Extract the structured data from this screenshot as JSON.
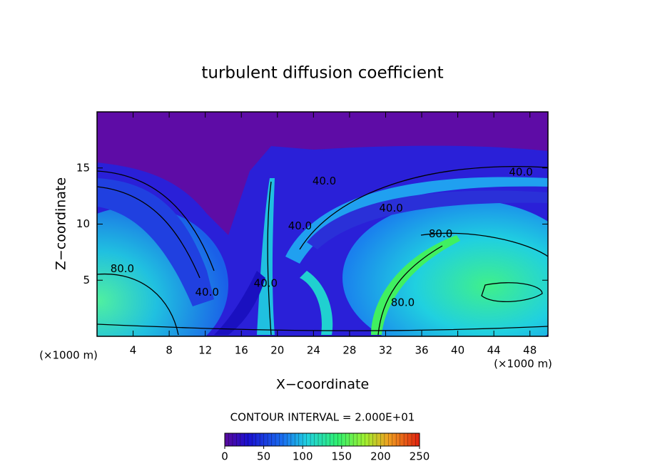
{
  "chart_data": {
    "type": "contour",
    "title": "turbulent diffusion coefficient",
    "x_label": "X−coordinate",
    "y_label": "Z−coordinate",
    "x_unit_label": "(×1000 m)",
    "y_unit_label": "(×1000 m)",
    "xlim": [
      0,
      50
    ],
    "ylim": [
      0,
      20
    ],
    "xticks": [
      4,
      8,
      12,
      16,
      20,
      24,
      28,
      32,
      36,
      40,
      44,
      48
    ],
    "yticks": [
      5,
      10,
      15
    ],
    "contour_interval_label": "CONTOUR INTERVAL = 2.000E+01",
    "colorbar_lim": [
      0,
      250
    ],
    "colorbar_ticks": [
      0,
      50,
      100,
      150,
      200,
      250
    ],
    "annotations": [
      {
        "text": "40.0",
        "x": 25.2,
        "y": 13.8
      },
      {
        "text": "40.0",
        "x": 47.0,
        "y": 14.6
      },
      {
        "text": "40.0",
        "x": 32.6,
        "y": 11.4
      },
      {
        "text": "40.0",
        "x": 22.5,
        "y": 9.8
      },
      {
        "text": "80.0",
        "x": 38.1,
        "y": 9.1
      },
      {
        "text": "80.0",
        "x": 2.8,
        "y": 6.0
      },
      {
        "text": "80.0",
        "x": 33.9,
        "y": 3.0
      },
      {
        "text": "40.0",
        "x": 18.7,
        "y": 4.7
      },
      {
        "text": "40.0",
        "x": 12.2,
        "y": 3.9
      }
    ]
  }
}
